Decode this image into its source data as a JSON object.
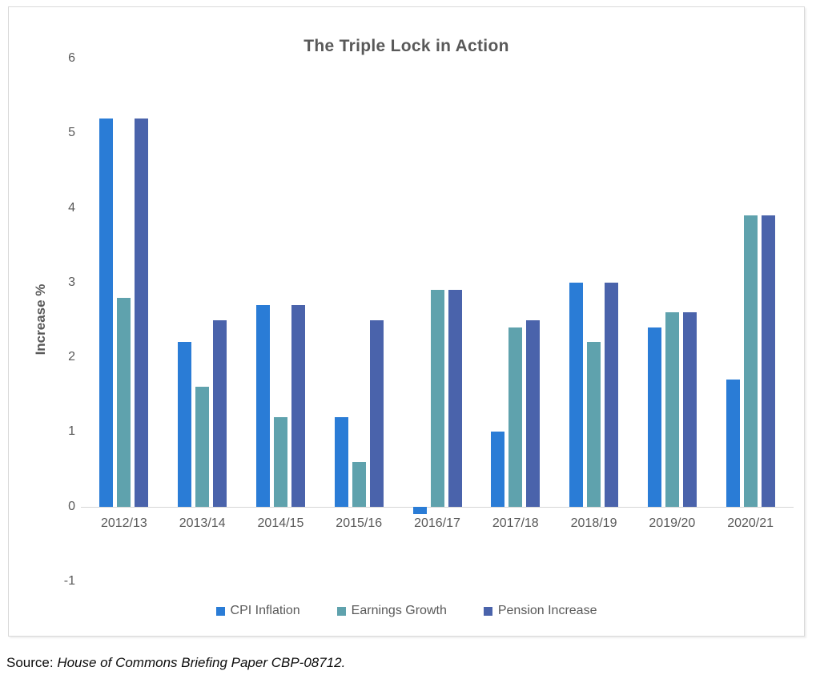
{
  "chart_data": {
    "type": "bar",
    "title": "The Triple Lock in Action",
    "xlabel": "",
    "ylabel": "Increase %",
    "ylim": [
      -1,
      6
    ],
    "yticks": [
      6,
      5,
      4,
      3,
      2,
      1,
      0,
      -1
    ],
    "grid": false,
    "legend_position": "bottom",
    "categories": [
      "2012/13",
      "2013/14",
      "2014/15",
      "2015/16",
      "2016/17",
      "2017/18",
      "2018/19",
      "2019/20",
      "2020/21"
    ],
    "series": [
      {
        "name": "CPI Inflation",
        "color": "#2a7cd6",
        "values": [
          5.2,
          2.2,
          2.7,
          1.2,
          -0.1,
          1.0,
          3.0,
          2.4,
          1.7
        ]
      },
      {
        "name": "Earnings Growth",
        "color": "#5fa2ad",
        "values": [
          2.8,
          1.6,
          1.2,
          0.6,
          2.9,
          2.4,
          2.2,
          2.6,
          3.9
        ]
      },
      {
        "name": "Pension Increase",
        "color": "#4a63ab",
        "values": [
          5.2,
          2.5,
          2.7,
          2.5,
          2.9,
          2.5,
          3.0,
          2.6,
          3.9
        ]
      }
    ]
  },
  "source_note": {
    "prefix": "Source: ",
    "citation": "House of Commons Briefing Paper CBP-08712."
  }
}
